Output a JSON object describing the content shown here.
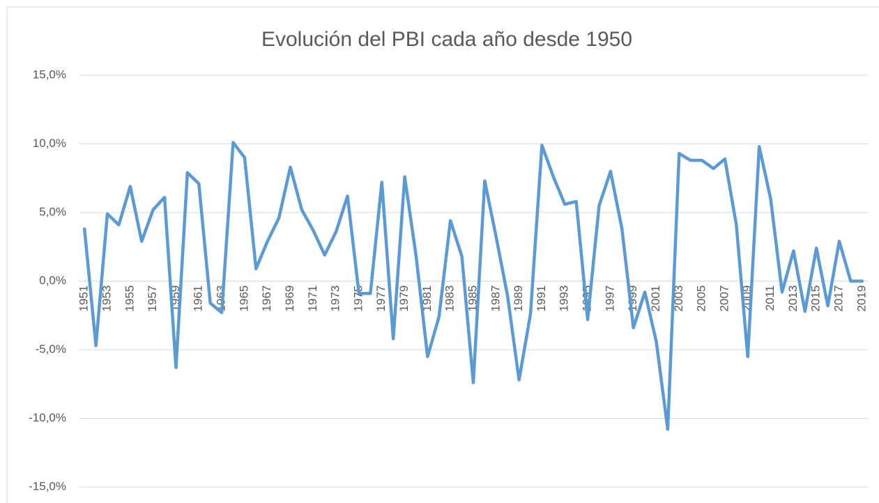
{
  "chart_data": {
    "type": "line",
    "title": "Evolución del PBI cada año desde 1950",
    "categories": [
      "1951",
      null,
      "1953",
      null,
      "1955",
      null,
      "1957",
      null,
      "1959",
      null,
      "1961",
      null,
      "1963",
      null,
      "1965",
      null,
      "1967",
      null,
      "1969",
      null,
      "1971",
      null,
      "1973",
      null,
      "1975",
      null,
      "1977",
      null,
      "1979",
      null,
      "1981",
      null,
      "1983",
      null,
      "1985",
      null,
      "1987",
      null,
      "1989",
      null,
      "1991",
      null,
      "1993",
      null,
      "1995",
      null,
      "1997",
      null,
      "1999",
      null,
      "2001",
      null,
      "2003",
      null,
      "2005",
      null,
      "2007",
      null,
      "2009",
      null,
      "2011",
      null,
      "2013",
      null,
      "2015",
      null,
      "2017",
      null,
      "2019"
    ],
    "series": [
      {
        "color": "#5b9bd5",
        "values": [
          3.8,
          -4.7,
          4.9,
          4.1,
          6.9,
          2.9,
          5.2,
          6.1,
          -6.3,
          7.9,
          7.1,
          -1.6,
          -2.3,
          10.1,
          9.0,
          0.9,
          2.9,
          4.6,
          8.3,
          5.2,
          3.7,
          1.9,
          3.6,
          6.2,
          -0.9,
          -0.9,
          7.2,
          -4.2,
          7.6,
          1.8,
          -5.5,
          -2.6,
          4.4,
          1.8,
          -7.4,
          7.3,
          3.2,
          -1.1,
          -7.2,
          -2.4,
          9.9,
          7.6,
          5.6,
          5.8,
          -2.8,
          5.5,
          8.0,
          3.8,
          -3.4,
          -0.8,
          -4.4,
          -10.8,
          9.3,
          8.8,
          8.8,
          8.2,
          8.9,
          4.1,
          -5.5,
          9.8,
          6.0,
          -0.8,
          2.2,
          -2.2,
          2.4,
          -1.8,
          2.9,
          0.0,
          0.0
        ]
      }
    ],
    "ylim": [
      -15,
      15
    ],
    "yticks": [
      {
        "value": 15,
        "label": "15,0%"
      },
      {
        "value": 10,
        "label": "10,0%"
      },
      {
        "value": 5,
        "label": "5,0%"
      },
      {
        "value": 0,
        "label": "0,0%"
      },
      {
        "value": -5,
        "label": "-5,0%"
      },
      {
        "value": -10,
        "label": "-10,0%"
      },
      {
        "value": -15,
        "label": "-15,0%"
      }
    ],
    "grid": true
  }
}
